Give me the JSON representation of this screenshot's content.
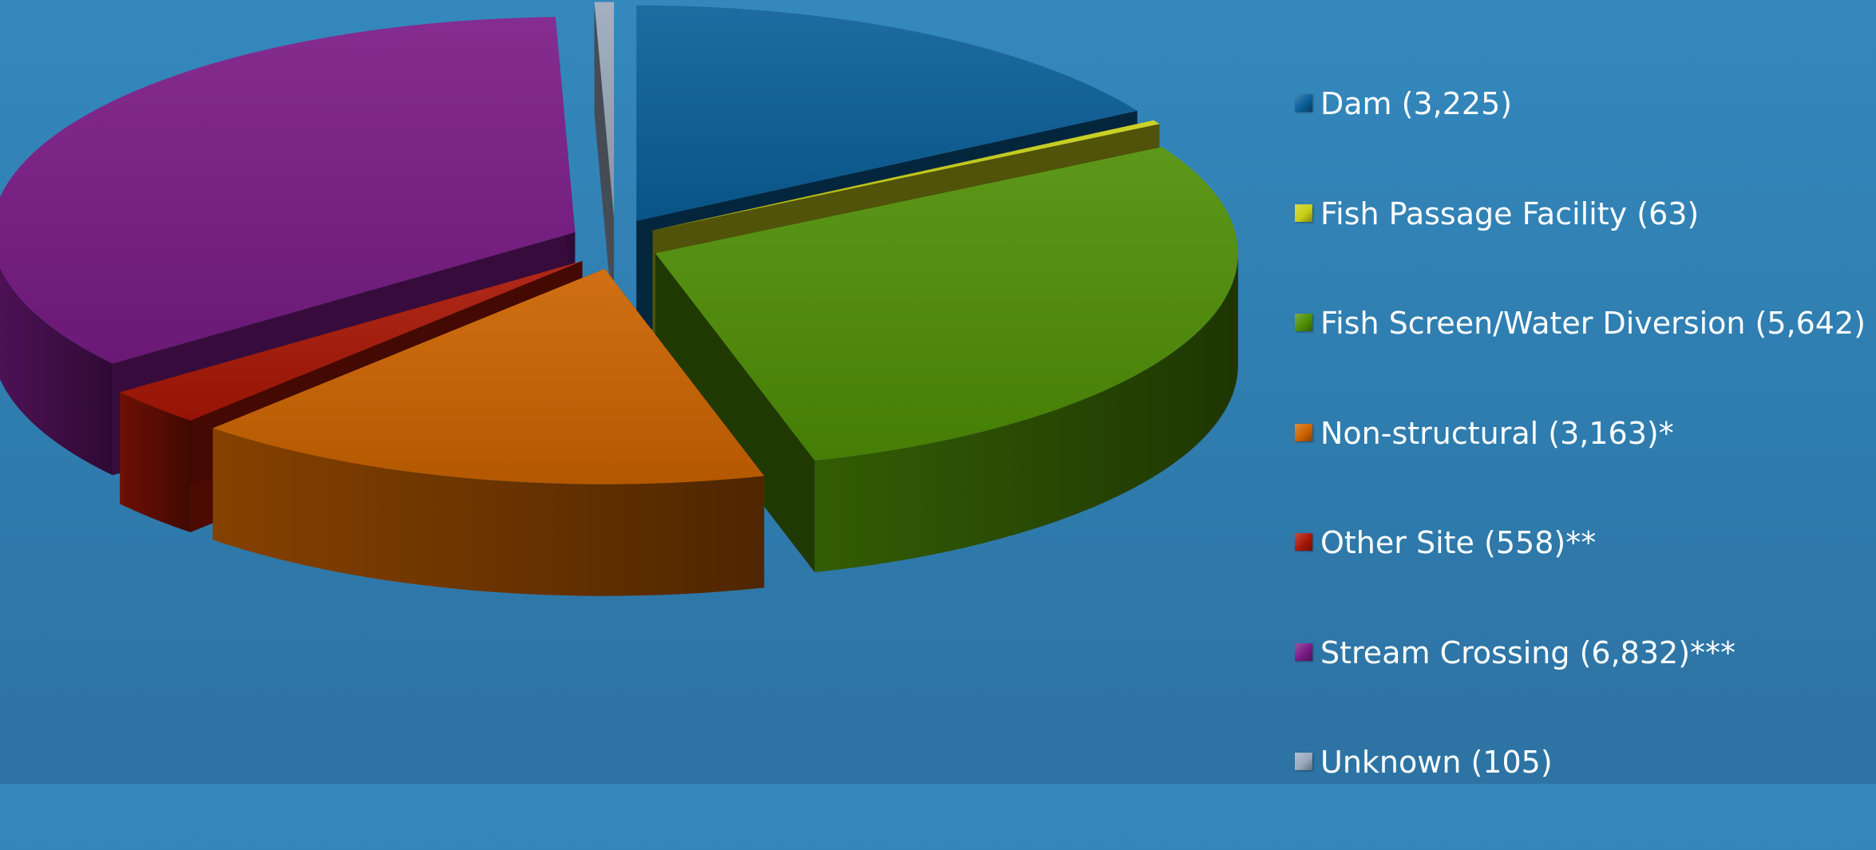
{
  "chart_data": {
    "type": "pie",
    "categories": [
      "Dam",
      "Fish Passage Facility",
      "Fish Screen/Water Diversion",
      "Non-structural",
      "Other Site",
      "Stream Crossing",
      "Unknown"
    ],
    "values": [
      3225,
      63,
      5642,
      3163,
      558,
      6832,
      105
    ],
    "legend": [
      "Dam (3,225)",
      "Fish Passage Facility (63)",
      "Fish Screen/Water Diversion (5,642)",
      "Non-structural (3,163)*",
      "Other Site (558)**",
      "Stream Crossing (6,832)***",
      "Unknown (105)"
    ],
    "colors": [
      "#0a5f99",
      "#c8cf16",
      "#4f8f06",
      "#cd6400",
      "#a91706",
      "#7a1b86",
      "#9aa9bd"
    ],
    "legend_position": "right",
    "exploded": true,
    "style": "3d"
  }
}
